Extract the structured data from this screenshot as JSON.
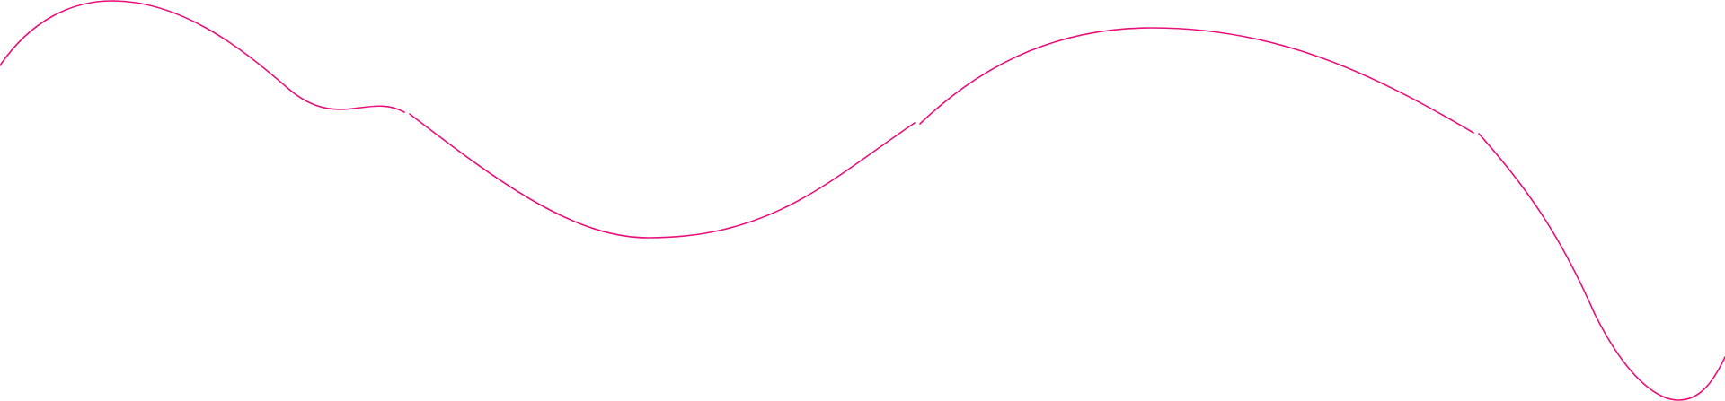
{
  "decoration": {
    "type": "wave-line",
    "stroke_color": "#e6127a",
    "segments": 4
  }
}
